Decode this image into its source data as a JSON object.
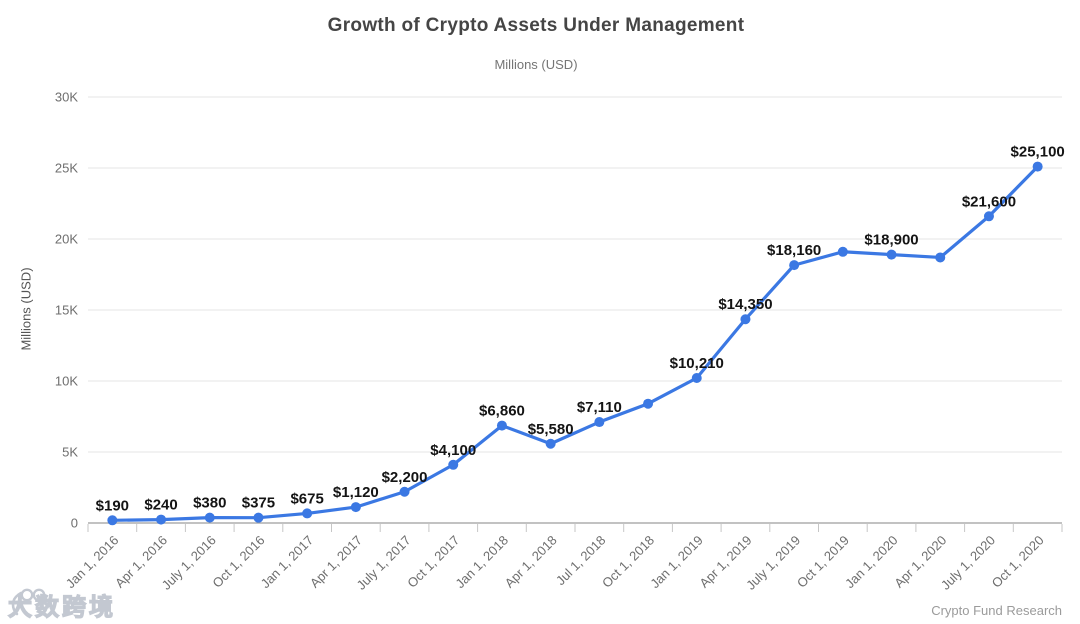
{
  "chart_data": {
    "type": "line",
    "title": "Growth of Crypto Assets Under Management",
    "subtitle": "Millions (USD)",
    "ylabel": "Millions (USD)",
    "xlabel": "",
    "ylim": [
      0,
      30000
    ],
    "y_ticks": [
      {
        "value": 0,
        "label": "0"
      },
      {
        "value": 5000,
        "label": "5K"
      },
      {
        "value": 10000,
        "label": "10K"
      },
      {
        "value": 15000,
        "label": "15K"
      },
      {
        "value": 20000,
        "label": "20K"
      },
      {
        "value": 25000,
        "label": "25K"
      },
      {
        "value": 30000,
        "label": "30K"
      }
    ],
    "grid": "horizontal-only",
    "legend_position": "none",
    "categories": [
      "Jan 1, 2016",
      "Apr 1, 2016",
      "July 1, 2016",
      "Oct 1, 2016",
      "Jan 1, 2017",
      "Apr 1, 2017",
      "July 1, 2017",
      "Oct 1, 2017",
      "Jan 1, 2018",
      "Apr 1, 2018",
      "Jul 1, 2018",
      "Oct 1, 2018",
      "Jan 1, 2019",
      "Apr 1, 2019",
      "July 1, 2019",
      "Oct 1, 2019",
      "Jan 1, 2020",
      "Apr 1, 2020",
      "July 1, 2020",
      "Oct 1, 2020"
    ],
    "values": [
      190,
      240,
      380,
      375,
      675,
      1120,
      2200,
      4100,
      6860,
      5580,
      7110,
      8400,
      10210,
      14350,
      18160,
      19100,
      18900,
      18700,
      21600,
      25100
    ],
    "point_labels": [
      "$190",
      "$240",
      "$380",
      "$375",
      "$675",
      "$1,120",
      "$2,200",
      "$4,100",
      "$6,860",
      "$5,580",
      "$7,110",
      null,
      "$10,210",
      "$14,350",
      "$18,160",
      null,
      "$18,900",
      null,
      "$21,600",
      "$25,100"
    ],
    "colors": {
      "line": "#3b78e3",
      "marker": "#3b78e3",
      "grid": "#e6e6e6",
      "axis_line": "#9e9e9e",
      "tick": "#c6c6c6",
      "axis_text": "#6e6e6e",
      "value_label": "#141414"
    }
  },
  "footer": {
    "credit": "Crypto Fund Research",
    "watermark": "大数跨境",
    "watermark_icon": "100-logo"
  }
}
